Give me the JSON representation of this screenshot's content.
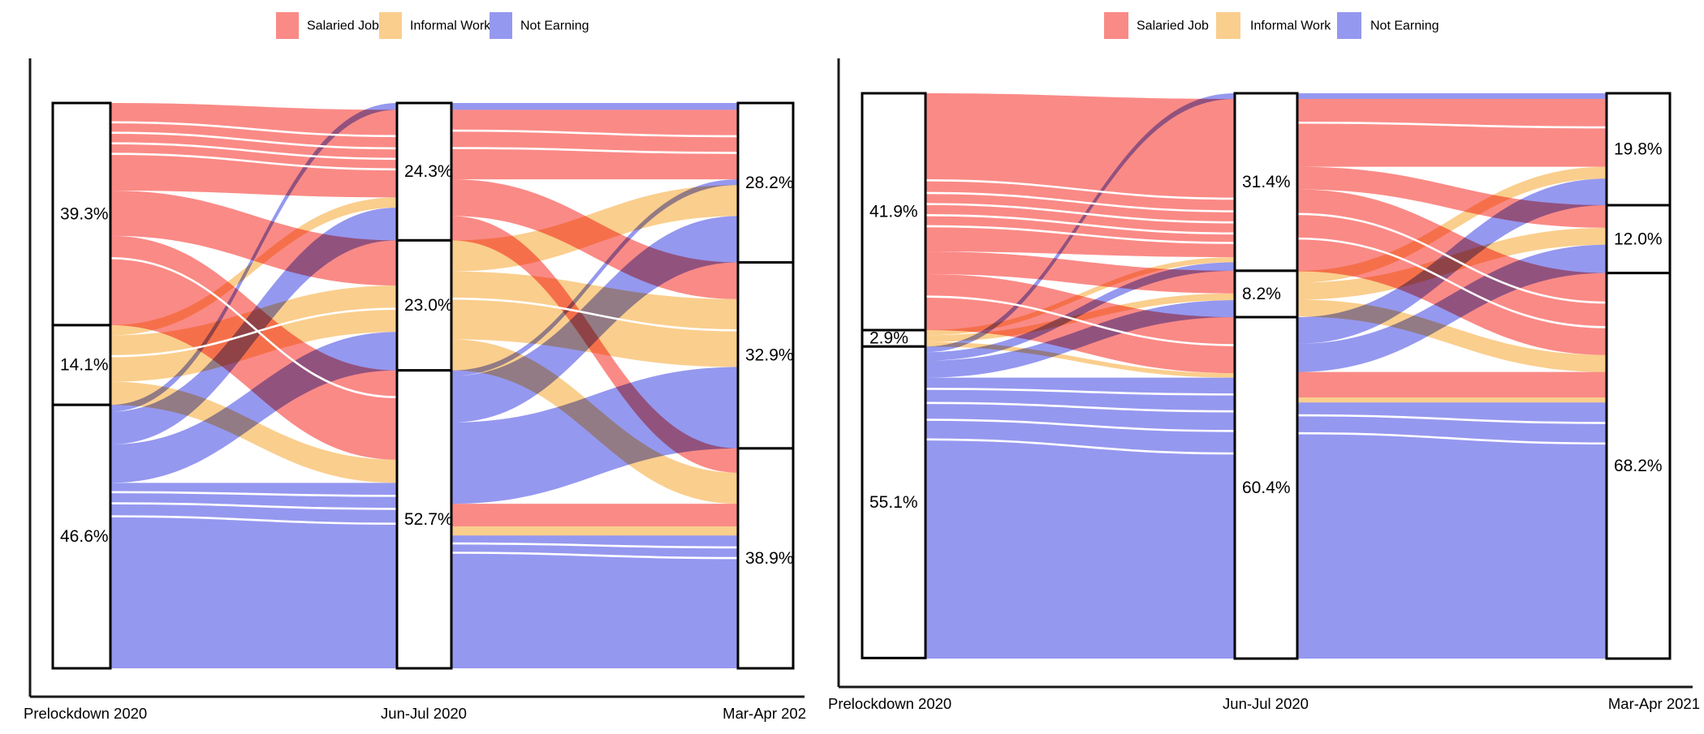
{
  "colors": {
    "salaried": "#FA8A86",
    "informal": "#FACE8D",
    "not_earning": "#9598EF",
    "axis": "#1a1a1a",
    "node_border": "#000000",
    "node_fill": "#ffffff",
    "separator": "#ffffff"
  },
  "legend": {
    "items": [
      {
        "label": "Salaried Job",
        "color_key": "salaried"
      },
      {
        "label": "Informal Work",
        "color_key": "informal"
      },
      {
        "label": "Not Earning",
        "color_key": "not_earning"
      }
    ]
  },
  "chart_data": [
    {
      "type": "alluvial",
      "title": "",
      "panel": "left",
      "x_categories": [
        "Prelockdown 2020",
        "Jun-Jul 2020",
        "Mar-Apr 202"
      ],
      "states": [
        "Salaried Job",
        "Informal Work",
        "Not Earning"
      ],
      "legend_entries": [
        "Salaried Job",
        "Informal Work",
        "Not Earning"
      ],
      "columns": [
        {
          "category": "Prelockdown 2020",
          "values": [
            39.3,
            14.1,
            46.6
          ],
          "labels": [
            "39.3%",
            "14.1%",
            "46.6%"
          ]
        },
        {
          "category": "Jun-Jul 2020",
          "values": [
            24.3,
            23.0,
            52.7
          ],
          "labels": [
            "24.3%",
            "23.0%",
            "52.7%"
          ]
        },
        {
          "category": "Mar-Apr 202",
          "values": [
            28.2,
            32.9,
            38.9
          ],
          "labels": [
            "28.2%",
            "32.9%",
            "38.9%"
          ]
        }
      ],
      "transitions": [
        {
          "flows": [
            {
              "s": 0,
              "t": 0,
              "v": 15.5,
              "c": 0,
              "so": 0,
              "to": 1
            },
            {
              "s": 0,
              "t": 1,
              "v": 8.0,
              "c": 0,
              "so": 1,
              "to": 0
            },
            {
              "s": 0,
              "t": 2,
              "v": 15.8,
              "c": 0,
              "so": 2,
              "to": 0
            },
            {
              "s": 1,
              "t": 0,
              "v": 1.8,
              "c": 1,
              "so": 0,
              "to": 2
            },
            {
              "s": 1,
              "t": 1,
              "v": 8.2,
              "c": 1,
              "so": 1,
              "to": 1
            },
            {
              "s": 1,
              "t": 2,
              "v": 4.1,
              "c": 1,
              "so": 2,
              "to": 1
            },
            {
              "s": 2,
              "t": 0,
              "v": 1.2,
              "c": 2,
              "so": 0,
              "to": 0
            },
            {
              "s": 2,
              "t": 0,
              "v": 5.8,
              "c": 2,
              "so": 1,
              "to": 3
            },
            {
              "s": 2,
              "t": 1,
              "v": 6.8,
              "c": 2,
              "so": 2,
              "to": 2
            },
            {
              "s": 2,
              "t": 2,
              "v": 32.8,
              "c": 2,
              "so": 3,
              "to": 2
            }
          ],
          "separators": [
            {
              "f": 0,
              "p": 0.22,
              "q": 0.3
            },
            {
              "f": 0,
              "p": 0.34,
              "q": 0.44
            },
            {
              "f": 0,
              "p": 0.46,
              "q": 0.56
            },
            {
              "f": 0,
              "p": 0.58,
              "q": 0.68
            },
            {
              "f": 2,
              "p": 0.25,
              "q": 0.3
            },
            {
              "f": 9,
              "p": 0.05,
              "q": 0.07
            },
            {
              "f": 9,
              "p": 0.11,
              "q": 0.14
            },
            {
              "f": 9,
              "p": 0.18,
              "q": 0.22
            },
            {
              "f": 4,
              "p": 0.45,
              "q": 0.5
            }
          ]
        },
        {
          "flows": [
            {
              "s": 0,
              "t": 0,
              "v": 1.2,
              "c": 2,
              "so": 0,
              "to": 0
            },
            {
              "s": 0,
              "t": 0,
              "v": 12.3,
              "c": 0,
              "so": 1,
              "to": 1
            },
            {
              "s": 0,
              "t": 1,
              "v": 6.5,
              "c": 0,
              "so": 2,
              "to": 0
            },
            {
              "s": 0,
              "t": 2,
              "v": 4.3,
              "c": 0,
              "so": 3,
              "to": 0
            },
            {
              "s": 1,
              "t": 0,
              "v": 5.5,
              "c": 1,
              "so": 0,
              "to": 3
            },
            {
              "s": 1,
              "t": 1,
              "v": 12.0,
              "c": 1,
              "so": 1,
              "to": 1
            },
            {
              "s": 1,
              "t": 2,
              "v": 5.5,
              "c": 1,
              "so": 2,
              "to": 1
            },
            {
              "s": 2,
              "t": 0,
              "v": 1.0,
              "c": 2,
              "so": 0,
              "to": 2
            },
            {
              "s": 2,
              "t": 0,
              "v": 8.2,
              "c": 2,
              "so": 1,
              "to": 4
            },
            {
              "s": 2,
              "t": 1,
              "v": 14.4,
              "c": 2,
              "so": 2,
              "to": 2
            },
            {
              "s": 2,
              "t": 2,
              "v": 4.0,
              "c": 0,
              "so": 3,
              "to": 2
            },
            {
              "s": 2,
              "t": 2,
              "v": 1.6,
              "c": 1,
              "so": 4,
              "to": 3
            },
            {
              "s": 2,
              "t": 2,
              "v": 23.5,
              "c": 2,
              "so": 5,
              "to": 4
            }
          ],
          "separators": [
            {
              "f": 1,
              "p": 0.3,
              "q": 0.38
            },
            {
              "f": 1,
              "p": 0.55,
              "q": 0.62
            },
            {
              "f": 12,
              "p": 0.06,
              "q": 0.09
            },
            {
              "f": 12,
              "p": 0.13,
              "q": 0.17
            },
            {
              "f": 5,
              "p": 0.4,
              "q": 0.46
            }
          ]
        }
      ]
    },
    {
      "type": "alluvial",
      "title": "",
      "panel": "right",
      "x_categories": [
        "Prelockdown 2020",
        "Jun-Jul 2020",
        "Mar-Apr 2021"
      ],
      "states": [
        "Salaried Job",
        "Informal Work",
        "Not Earning"
      ],
      "legend_entries": [
        "Salaried Job",
        "Informal Work",
        "Not Earning"
      ],
      "columns": [
        {
          "category": "Prelockdown 2020",
          "values": [
            41.9,
            2.9,
            55.1
          ],
          "labels": [
            "41.9%",
            "2.9%",
            "55.1%"
          ]
        },
        {
          "category": "Jun-Jul 2020",
          "values": [
            31.4,
            8.2,
            60.4
          ],
          "labels": [
            "31.4%",
            "8.2%",
            "60.4%"
          ]
        },
        {
          "category": "Mar-Apr 2021",
          "values": [
            19.8,
            12.0,
            68.2
          ],
          "labels": [
            "19.8%",
            "12.0%",
            "68.2%"
          ]
        }
      ],
      "transitions": [
        {
          "flows": [
            {
              "s": 0,
              "t": 0,
              "v": 28.0,
              "c": 0,
              "so": 0,
              "to": 1
            },
            {
              "s": 0,
              "t": 1,
              "v": 4.0,
              "c": 0,
              "so": 1,
              "to": 0
            },
            {
              "s": 0,
              "t": 2,
              "v": 9.9,
              "c": 0,
              "so": 2,
              "to": 0
            },
            {
              "s": 1,
              "t": 0,
              "v": 0.9,
              "c": 1,
              "so": 0,
              "to": 2
            },
            {
              "s": 1,
              "t": 1,
              "v": 1.2,
              "c": 1,
              "so": 1,
              "to": 1
            },
            {
              "s": 1,
              "t": 2,
              "v": 0.8,
              "c": 1,
              "so": 2,
              "to": 1
            },
            {
              "s": 2,
              "t": 0,
              "v": 1.0,
              "c": 2,
              "so": 0,
              "to": 0
            },
            {
              "s": 2,
              "t": 0,
              "v": 1.5,
              "c": 2,
              "so": 1,
              "to": 3
            },
            {
              "s": 2,
              "t": 1,
              "v": 3.0,
              "c": 2,
              "so": 2,
              "to": 2
            },
            {
              "s": 2,
              "t": 2,
              "v": 49.7,
              "c": 2,
              "so": 3,
              "to": 2
            }
          ],
          "separators": [
            {
              "f": 0,
              "p": 0.55,
              "q": 0.63
            },
            {
              "f": 0,
              "p": 0.63,
              "q": 0.71
            },
            {
              "f": 0,
              "p": 0.7,
              "q": 0.78
            },
            {
              "f": 0,
              "p": 0.77,
              "q": 0.85
            },
            {
              "f": 0,
              "p": 0.84,
              "q": 0.91
            },
            {
              "f": 9,
              "p": 0.04,
              "q": 0.06
            },
            {
              "f": 9,
              "p": 0.09,
              "q": 0.12
            },
            {
              "f": 9,
              "p": 0.15,
              "q": 0.19
            },
            {
              "f": 9,
              "p": 0.22,
              "q": 0.27
            },
            {
              "f": 2,
              "p": 0.4,
              "q": 0.5
            }
          ]
        },
        {
          "flows": [
            {
              "s": 0,
              "t": 0,
              "v": 1.0,
              "c": 2,
              "so": 0,
              "to": 0
            },
            {
              "s": 0,
              "t": 0,
              "v": 12.0,
              "c": 0,
              "so": 1,
              "to": 1
            },
            {
              "s": 0,
              "t": 1,
              "v": 4.0,
              "c": 0,
              "so": 2,
              "to": 0
            },
            {
              "s": 0,
              "t": 2,
              "v": 14.5,
              "c": 0,
              "so": 3,
              "to": 0
            },
            {
              "s": 1,
              "t": 0,
              "v": 2.1,
              "c": 1,
              "so": 0,
              "to": 2
            },
            {
              "s": 1,
              "t": 1,
              "v": 3.0,
              "c": 1,
              "so": 1,
              "to": 1
            },
            {
              "s": 1,
              "t": 2,
              "v": 3.0,
              "c": 1,
              "so": 2,
              "to": 1
            },
            {
              "s": 2,
              "t": 0,
              "v": 4.7,
              "c": 2,
              "so": 0,
              "to": 3
            },
            {
              "s": 2,
              "t": 1,
              "v": 5.0,
              "c": 2,
              "so": 1,
              "to": 2
            },
            {
              "s": 2,
              "t": 2,
              "v": 4.5,
              "c": 0,
              "so": 2,
              "to": 2
            },
            {
              "s": 2,
              "t": 2,
              "v": 0.9,
              "c": 1,
              "so": 3,
              "to": 3
            },
            {
              "s": 2,
              "t": 2,
              "v": 45.3,
              "c": 2,
              "so": 4,
              "to": 4
            }
          ],
          "separators": [
            {
              "f": 1,
              "p": 0.35,
              "q": 0.42
            },
            {
              "f": 3,
              "p": 0.3,
              "q": 0.36
            },
            {
              "f": 3,
              "p": 0.6,
              "q": 0.66
            },
            {
              "f": 11,
              "p": 0.05,
              "q": 0.08
            },
            {
              "f": 11,
              "p": 0.12,
              "q": 0.16
            }
          ]
        }
      ]
    }
  ]
}
